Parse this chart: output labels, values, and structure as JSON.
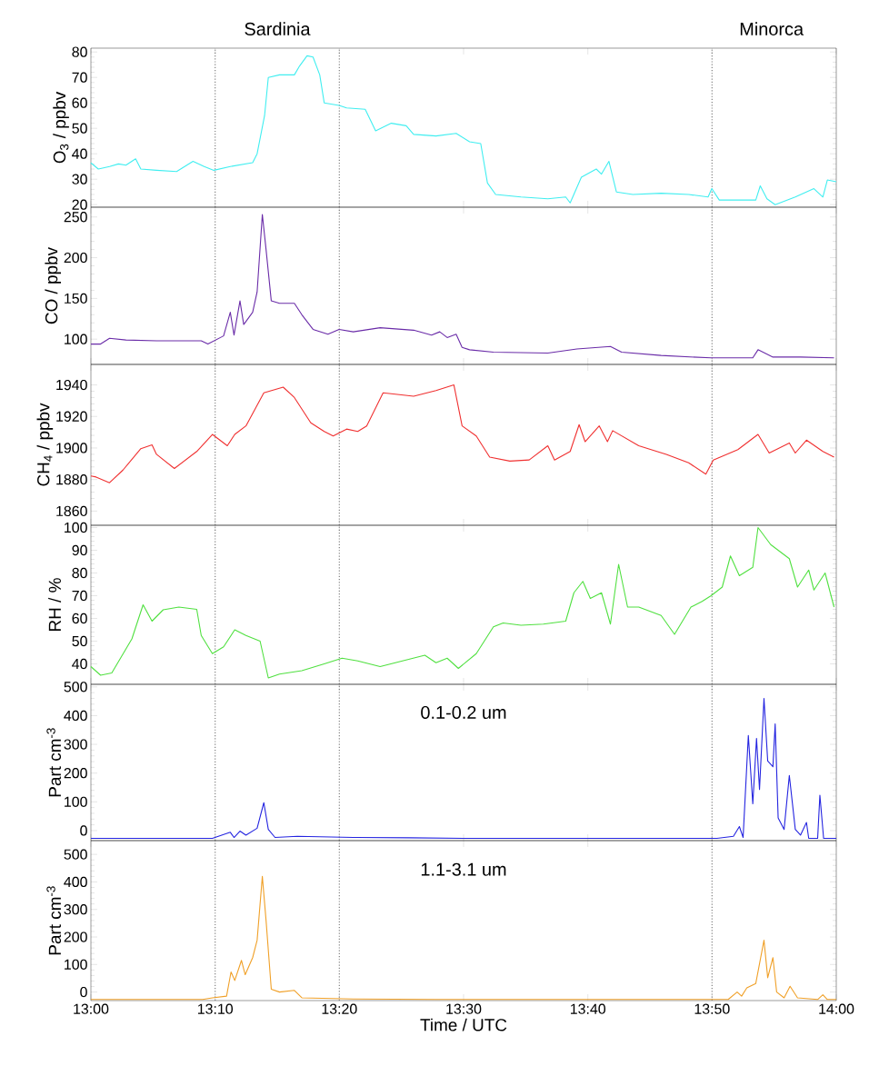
{
  "chart_data": [
    {
      "type": "line",
      "ylabel": "O$_{3}$ / ppbv",
      "color": "#40eef0",
      "xlim": [
        13,
        14
      ],
      "ylim": [
        19,
        81.5
      ],
      "yticks": [
        20,
        30,
        40,
        50,
        60,
        70,
        80
      ],
      "tick_labels": "y",
      "xticks": [
        {
          "value": 13,
          "label": null
        },
        {
          "value": 13.1667,
          "label": null
        },
        {
          "value": 13.3333,
          "label": null
        },
        {
          "value": 13.5,
          "label": null
        },
        {
          "value": 13.6667,
          "label": null
        },
        {
          "value": 13.8333,
          "label": null
        },
        {
          "value": 14,
          "label": null
        }
      ],
      "annotations": [
        "Sardinia",
        "Minorca"
      ],
      "ref_lines": [
        {
          "axis": "x",
          "value": 13.1667,
          "line_style": "dotted",
          "color": "#808080"
        },
        {
          "axis": "x",
          "value": 13.3333,
          "line_style": "dotted",
          "color": "#808080"
        },
        {
          "axis": "x",
          "value": 13.8333,
          "line_style": "dotted",
          "color": "#808080"
        }
      ],
      "x": [
        13.0,
        13.01,
        13.025,
        13.037,
        13.047,
        13.06,
        13.067,
        13.088,
        13.115,
        13.137,
        13.152,
        13.165,
        13.187,
        13.217,
        13.223,
        13.233,
        13.238,
        13.253,
        13.273,
        13.28,
        13.29,
        13.298,
        13.307,
        13.313,
        13.333,
        13.343,
        13.368,
        13.382,
        13.403,
        13.423,
        13.433,
        13.463,
        13.49,
        13.508,
        13.523,
        13.532,
        13.543,
        13.577,
        13.613,
        13.637,
        13.643,
        13.658,
        13.678,
        13.685,
        13.695,
        13.705,
        13.727,
        13.765,
        13.802,
        13.828,
        13.833,
        13.843,
        13.892,
        13.898,
        13.907,
        13.918,
        13.945,
        13.97,
        13.982,
        13.988,
        14.0
      ],
      "values": [
        36.4,
        34,
        35,
        36,
        35.5,
        38,
        34,
        33.5,
        33,
        37,
        35,
        33.5,
        35,
        36.5,
        40,
        55,
        70,
        71,
        71,
        74.5,
        78.5,
        78,
        71,
        60,
        59,
        58,
        57.5,
        49,
        52,
        51,
        47.6,
        47,
        48,
        44.7,
        44,
        28.5,
        24,
        23,
        22.3,
        23,
        20.7,
        30.8,
        34,
        32,
        37,
        25,
        24,
        24.5,
        24,
        23,
        26.3,
        21.8,
        21.8,
        27.4,
        22.3,
        20,
        23,
        26.3,
        23,
        29.7,
        29
      ]
    },
    {
      "type": "line",
      "ylabel": "CO / ppbv",
      "color": "#6a2ca8",
      "xlim": [
        13,
        14
      ],
      "ylim": [
        69,
        262
      ],
      "yticks": [
        100,
        150,
        200,
        250
      ],
      "tick_labels": "y",
      "xticks": [
        {
          "value": 13,
          "label": null
        },
        {
          "value": 13.1667,
          "label": null
        },
        {
          "value": 13.3333,
          "label": null
        },
        {
          "value": 13.5,
          "label": null
        },
        {
          "value": 13.6667,
          "label": null
        },
        {
          "value": 13.8333,
          "label": null
        },
        {
          "value": 14,
          "label": null
        }
      ],
      "ref_lines": [
        {
          "axis": "x",
          "value": 13.1667,
          "line_style": "dotted",
          "color": "#808080"
        },
        {
          "axis": "x",
          "value": 13.3333,
          "line_style": "dotted",
          "color": "#808080"
        },
        {
          "axis": "x",
          "value": 13.8333,
          "line_style": "dotted",
          "color": "#808080"
        }
      ],
      "x": [
        13.0,
        13.013,
        13.025,
        13.047,
        13.088,
        13.148,
        13.157,
        13.178,
        13.187,
        13.192,
        13.2,
        13.205,
        13.217,
        13.223,
        13.23,
        13.235,
        13.242,
        13.253,
        13.273,
        13.283,
        13.298,
        13.318,
        13.333,
        13.352,
        13.388,
        13.433,
        13.457,
        13.468,
        13.478,
        13.49,
        13.498,
        13.508,
        13.54,
        13.613,
        13.652,
        13.697,
        13.712,
        13.765,
        13.832,
        13.888,
        13.895,
        13.915,
        13.952,
        13.997
      ],
      "values": [
        94,
        94,
        101,
        99,
        98,
        98,
        94,
        104,
        133,
        105,
        147,
        118,
        133,
        158,
        253,
        210,
        147,
        144,
        144,
        130,
        112,
        106,
        112,
        109,
        114,
        111,
        105,
        109,
        102,
        106,
        90,
        87,
        84,
        83,
        88,
        91,
        84,
        80,
        77,
        77,
        87,
        78,
        78,
        77
      ]
    },
    {
      "type": "line",
      "ylabel": "CH$_{4}$ / ppbv",
      "color": "#f03030",
      "xlim": [
        13,
        14
      ],
      "ylim": [
        1851,
        1953
      ],
      "yticks": [
        1860,
        1880,
        1900,
        1920,
        1940
      ],
      "tick_labels": "y",
      "xticks": [
        {
          "value": 13,
          "label": null
        },
        {
          "value": 13.1667,
          "label": null
        },
        {
          "value": 13.3333,
          "label": null
        },
        {
          "value": 13.5,
          "label": null
        },
        {
          "value": 13.6667,
          "label": null
        },
        {
          "value": 13.8333,
          "label": null
        },
        {
          "value": 14,
          "label": null
        }
      ],
      "ref_lines": [
        {
          "axis": "x",
          "value": 13.1667,
          "line_style": "dotted",
          "color": "#808080"
        },
        {
          "axis": "x",
          "value": 13.3333,
          "line_style": "dotted",
          "color": "#808080"
        },
        {
          "axis": "x",
          "value": 13.8333,
          "line_style": "dotted",
          "color": "#808080"
        }
      ],
      "x": [
        13.0,
        13.007,
        13.025,
        13.043,
        13.067,
        13.082,
        13.088,
        13.112,
        13.142,
        13.163,
        13.183,
        13.193,
        13.208,
        13.232,
        13.258,
        13.273,
        13.295,
        13.313,
        13.325,
        13.343,
        13.358,
        13.37,
        13.392,
        13.433,
        13.463,
        13.487,
        13.498,
        13.517,
        13.535,
        13.562,
        13.588,
        13.613,
        13.622,
        13.643,
        13.655,
        13.663,
        13.682,
        13.693,
        13.7,
        13.735,
        13.772,
        13.802,
        13.825,
        13.835,
        13.868,
        13.895,
        13.91,
        13.937,
        13.945,
        13.96,
        13.982,
        13.997
      ],
      "values": [
        1882.3,
        1881.6,
        1878,
        1886,
        1899.6,
        1902,
        1896,
        1887,
        1897.8,
        1908.6,
        1901.4,
        1908.6,
        1914,
        1935,
        1938.6,
        1932,
        1916,
        1910.5,
        1907.6,
        1912,
        1910.5,
        1914,
        1935,
        1932.8,
        1936.4,
        1940,
        1914,
        1907.6,
        1894.2,
        1891.7,
        1892.4,
        1901.4,
        1892.4,
        1897.8,
        1914.8,
        1904,
        1914,
        1904,
        1911,
        1901.4,
        1896,
        1890.6,
        1883.4,
        1892.4,
        1899,
        1908.6,
        1896.8,
        1903.2,
        1896.8,
        1905,
        1897.8,
        1894.2
      ]
    },
    {
      "type": "line",
      "ylabel": "RH / %",
      "color": "#50e040",
      "xlim": [
        13,
        14
      ],
      "ylim": [
        31,
        101
      ],
      "yticks": [
        40,
        50,
        60,
        70,
        80,
        90,
        100
      ],
      "tick_labels": "y",
      "xticks": [
        {
          "value": 13,
          "label": null
        },
        {
          "value": 13.1667,
          "label": null
        },
        {
          "value": 13.3333,
          "label": null
        },
        {
          "value": 13.5,
          "label": null
        },
        {
          "value": 13.6667,
          "label": null
        },
        {
          "value": 13.8333,
          "label": null
        },
        {
          "value": 14,
          "label": null
        }
      ],
      "ref_lines": [
        {
          "axis": "x",
          "value": 13.1667,
          "line_style": "dotted",
          "color": "#808080"
        },
        {
          "axis": "x",
          "value": 13.3333,
          "line_style": "dotted",
          "color": "#808080"
        },
        {
          "axis": "x",
          "value": 13.8333,
          "line_style": "dotted",
          "color": "#808080"
        }
      ],
      "x": [
        13.0,
        13.013,
        13.028,
        13.055,
        13.07,
        13.082,
        13.097,
        13.118,
        13.142,
        13.148,
        13.163,
        13.178,
        13.193,
        13.208,
        13.227,
        13.238,
        13.253,
        13.283,
        13.313,
        13.337,
        13.358,
        13.388,
        13.418,
        13.448,
        13.463,
        13.478,
        13.493,
        13.517,
        13.54,
        13.553,
        13.577,
        13.607,
        13.637,
        13.648,
        13.66,
        13.67,
        13.685,
        13.697,
        13.708,
        13.72,
        13.735,
        13.765,
        13.783,
        13.805,
        13.82,
        13.832,
        13.847,
        13.858,
        13.87,
        13.888,
        13.895,
        13.912,
        13.937,
        13.948,
        13.963,
        13.97,
        13.985,
        13.997
      ],
      "values": [
        38.8,
        35,
        36,
        51,
        66,
        58.8,
        63.8,
        65,
        64,
        52.5,
        44.5,
        47.5,
        55,
        52.5,
        50,
        33.8,
        35.5,
        37,
        40,
        42.5,
        41.3,
        38.8,
        41.3,
        43.8,
        40.5,
        42.5,
        38,
        44.5,
        56.3,
        58,
        57,
        57.5,
        58.8,
        71.3,
        76.3,
        68.8,
        71.3,
        57.5,
        83.8,
        65,
        65,
        61.3,
        53,
        65,
        67.5,
        70,
        73.8,
        87.5,
        78.8,
        82.5,
        100,
        92.5,
        86.3,
        73.8,
        81.3,
        72.5,
        80,
        65
      ]
    },
    {
      "type": "line",
      "ylabel": "Part cm$^{-3}$",
      "color": "#2424e0",
      "xlim": [
        13,
        14
      ],
      "ylim": [
        -35,
        509
      ],
      "yticks": [
        0,
        100,
        200,
        300,
        400,
        500
      ],
      "tick_labels": "y",
      "xticks": [
        {
          "value": 13,
          "label": null
        },
        {
          "value": 13.1667,
          "label": null
        },
        {
          "value": 13.3333,
          "label": null
        },
        {
          "value": 13.5,
          "label": null
        },
        {
          "value": 13.6667,
          "label": null
        },
        {
          "value": 13.8333,
          "label": null
        },
        {
          "value": 14,
          "label": null
        }
      ],
      "annotations": [
        "0.1-0.2 um"
      ],
      "ref_lines": [
        {
          "axis": "x",
          "value": 13.1667,
          "line_style": "dotted",
          "color": "#808080"
        },
        {
          "axis": "x",
          "value": 13.3333,
          "line_style": "dotted",
          "color": "#808080"
        },
        {
          "axis": "x",
          "value": 13.8333,
          "line_style": "dotted",
          "color": "#808080"
        }
      ],
      "x": [
        13.0,
        13.088,
        13.163,
        13.187,
        13.192,
        13.2,
        13.208,
        13.223,
        13.232,
        13.238,
        13.247,
        13.277,
        13.352,
        13.427,
        13.502,
        13.84,
        13.862,
        13.87,
        13.875,
        13.882,
        13.888,
        13.893,
        13.897,
        13.903,
        13.908,
        13.915,
        13.918,
        13.922,
        13.93,
        13.937,
        13.945,
        13.952,
        13.96,
        13.963,
        13.975,
        13.978,
        13.983,
        14.0
      ],
      "values": [
        -27,
        -27,
        -27,
        -6,
        -24,
        -2,
        -16,
        8,
        97,
        4,
        -24,
        -20,
        -24,
        -25,
        -27,
        -27,
        -20,
        14,
        -24,
        331,
        93,
        321,
        143,
        460,
        242,
        222,
        371,
        44,
        4,
        192,
        4,
        -16,
        28,
        -27,
        -27,
        123,
        -27,
        -27
      ]
    },
    {
      "type": "line",
      "ylabel": "Part cm$^{-3}$",
      "xlabel": "Time / UTC",
      "color": "#f0a028",
      "xlim": [
        13,
        14
      ],
      "ylim": [
        -31,
        550
      ],
      "yticks": [
        0,
        100,
        200,
        300,
        400,
        500
      ],
      "xticks": [
        {
          "value": 13,
          "label": "13:00"
        },
        {
          "value": 13.1667,
          "label": "13:10"
        },
        {
          "value": 13.3333,
          "label": "13:20"
        },
        {
          "value": 13.5,
          "label": "13:30"
        },
        {
          "value": 13.6667,
          "label": "13:40"
        },
        {
          "value": 13.8333,
          "label": "13:50"
        },
        {
          "value": 14,
          "label": "14:00"
        }
      ],
      "annotations": [
        "1.1-3.1 um"
      ],
      "ref_lines": [
        {
          "axis": "x",
          "value": 13.1667,
          "line_style": "dotted",
          "color": "#808080"
        },
        {
          "axis": "x",
          "value": 13.3333,
          "line_style": "dotted",
          "color": "#808080"
        },
        {
          "axis": "x",
          "value": 13.8333,
          "line_style": "dotted",
          "color": "#808080"
        }
      ],
      "x": [
        13.0,
        13.15,
        13.163,
        13.182,
        13.188,
        13.193,
        13.202,
        13.207,
        13.217,
        13.223,
        13.23,
        13.235,
        13.242,
        13.253,
        13.273,
        13.283,
        13.352,
        13.463,
        13.855,
        13.867,
        13.873,
        13.88,
        13.892,
        13.903,
        13.908,
        13.915,
        13.92,
        13.93,
        13.938,
        13.948,
        13.975,
        13.982,
        13.988,
        14.0
      ],
      "values": [
        -27,
        -27,
        -21,
        -15,
        73,
        42,
        115,
        63,
        125,
        188,
        420,
        260,
        10,
        0,
        6,
        -21,
        -25,
        -27,
        -27,
        0,
        -15,
        15,
        31,
        188,
        52,
        125,
        0,
        -21,
        21,
        -21,
        -27,
        -10,
        -27,
        -27
      ]
    }
  ]
}
